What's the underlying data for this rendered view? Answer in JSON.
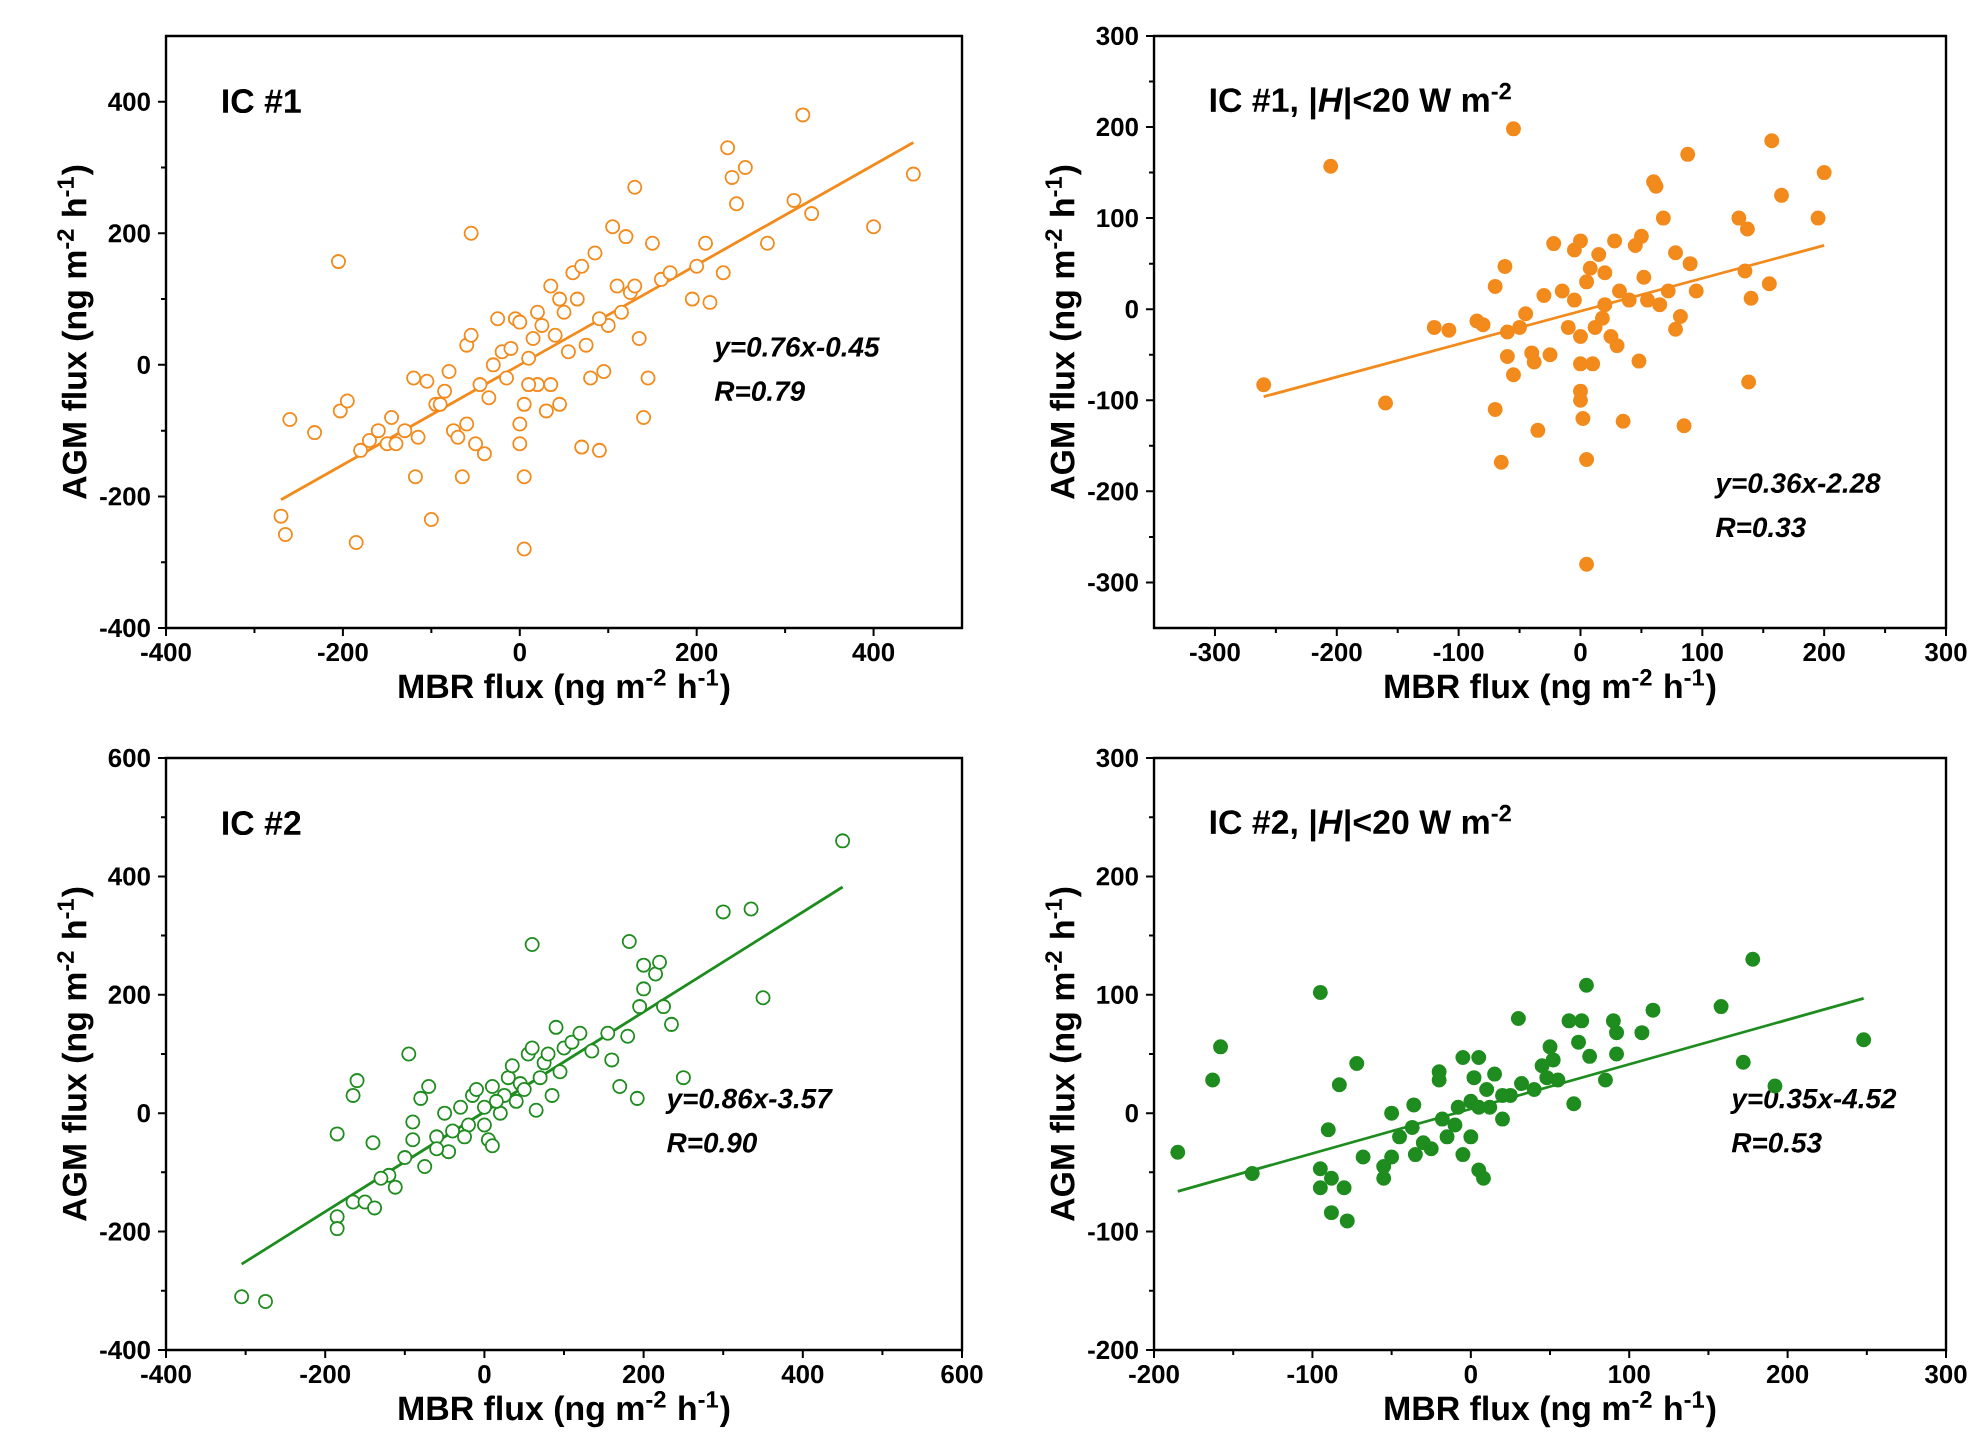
{
  "chart_data": [
    {
      "type": "scatter",
      "title": "IC #1",
      "xlabel": "MBR flux (ng m$^{-2}$ h$^{-1}$)",
      "ylabel": "AGM flux (ng m$^{-2}$ h$^{-1}$)",
      "xlim": [
        -400,
        500
      ],
      "ylim": [
        -400,
        500
      ],
      "xticks": [
        -400,
        -200,
        0,
        200,
        400
      ],
      "yticks": [
        -400,
        -200,
        0,
        200,
        400
      ],
      "grid": false,
      "annotations": [
        "y=0.76x-0.45",
        "R=0.79"
      ],
      "series": [
        {
          "marker": "circle",
          "color": "#f28a1c",
          "x": [
            -270,
            -265,
            -260,
            -232,
            -205,
            -203,
            -195,
            -185,
            -180,
            -170,
            -160,
            -150,
            -145,
            -140,
            -120,
            -118,
            -115,
            -105,
            -100,
            -95,
            -90,
            -80,
            -75,
            -70,
            -65,
            -60,
            -55,
            -55,
            -50,
            -45,
            -40,
            -35,
            -25,
            -20,
            -15,
            -10,
            -5,
            0,
            0,
            0,
            5,
            5,
            5,
            10,
            15,
            20,
            25,
            30,
            35,
            35,
            40,
            45,
            50,
            55,
            60,
            65,
            70,
            75,
            80,
            85,
            90,
            95,
            100,
            105,
            110,
            120,
            125,
            130,
            135,
            140,
            145,
            150,
            160,
            170,
            195,
            200,
            210,
            215,
            230,
            235,
            240,
            245,
            255,
            280,
            310,
            320,
            330,
            400,
            445,
            -130,
            -85,
            20,
            45,
            70,
            90,
            115,
            130,
            -30,
            10,
            -60
          ],
          "values": [
            -230,
            -258,
            -83,
            -103,
            157,
            -70,
            -55,
            -270,
            -130,
            -115,
            -100,
            -120,
            -80,
            -120,
            -20,
            -170,
            -110,
            -25,
            -235,
            -60,
            -60,
            -10,
            -100,
            -110,
            -170,
            30,
            45,
            200,
            -120,
            -30,
            -135,
            -50,
            70,
            20,
            -20,
            25,
            70,
            65,
            -90,
            -120,
            -280,
            -170,
            -60,
            10,
            40,
            -30,
            60,
            -70,
            120,
            -30,
            45,
            -60,
            80,
            20,
            140,
            100,
            -125,
            30,
            -20,
            170,
            -130,
            -10,
            60,
            210,
            120,
            195,
            110,
            270,
            40,
            -80,
            -20,
            185,
            130,
            140,
            100,
            150,
            185,
            95,
            140,
            330,
            285,
            245,
            300,
            185,
            250,
            380,
            230,
            210,
            290,
            -100,
            -40,
            80,
            100,
            150,
            70,
            80,
            120,
            0,
            -30,
            -90
          ]
        },
        {
          "type": "line",
          "marker": "none",
          "color": "#f28a1c",
          "x": [
            -270,
            445
          ],
          "values": [
            -205,
            338
          ]
        }
      ]
    },
    {
      "type": "scatter",
      "title": "IC #1, |*H*|<20 W m$^{-2}$",
      "xlabel": "MBR flux (ng m$^{-2}$ h$^{-1}$)",
      "ylabel": "AGM flux (ng m$^{-2}$ h$^{-1}$)",
      "xlim": [
        -350,
        300
      ],
      "ylim": [
        -350,
        300
      ],
      "xticks": [
        -300,
        -200,
        -100,
        0,
        100,
        200,
        300
      ],
      "yticks": [
        -300,
        -200,
        -100,
        0,
        100,
        200,
        300
      ],
      "grid": false,
      "annotations": [
        "y=0.36x-2.28",
        "R=0.33"
      ],
      "series": [
        {
          "marker": "circle",
          "color": "#f28a1c",
          "x": [
            -260,
            -205,
            -160,
            -120,
            -108,
            -85,
            -80,
            -70,
            -70,
            -65,
            -62,
            -60,
            -60,
            -55,
            -55,
            -45,
            -40,
            -38,
            -35,
            -30,
            -25,
            -22,
            -15,
            -10,
            -5,
            -5,
            0,
            0,
            0,
            0,
            0,
            2,
            5,
            5,
            5,
            8,
            10,
            12,
            15,
            18,
            20,
            25,
            28,
            30,
            32,
            35,
            40,
            45,
            48,
            50,
            52,
            55,
            60,
            62,
            65,
            68,
            72,
            78,
            78,
            82,
            85,
            88,
            90,
            95,
            130,
            135,
            137,
            138,
            140,
            155,
            157,
            165,
            195,
            200,
            -50,
            20
          ],
          "values": [
            -83,
            157,
            -103,
            -20,
            -23,
            -13,
            -17,
            -110,
            25,
            -168,
            47,
            -25,
            -52,
            -72,
            198,
            -5,
            -48,
            -58,
            -133,
            15,
            -50,
            72,
            20,
            -20,
            65,
            10,
            75,
            -30,
            -60,
            -90,
            -100,
            -120,
            -280,
            -165,
            30,
            45,
            -60,
            -20,
            60,
            -10,
            40,
            -30,
            75,
            -40,
            20,
            -123,
            10,
            70,
            -57,
            80,
            35,
            10,
            140,
            135,
            5,
            100,
            20,
            62,
            -22,
            -8,
            -128,
            170,
            50,
            20,
            100,
            42,
            88,
            -80,
            12,
            28,
            185,
            125,
            100,
            150,
            -20,
            5
          ]
        },
        {
          "type": "line",
          "marker": "none",
          "color": "#f28a1c",
          "x": [
            -260,
            200
          ],
          "values": [
            -96,
            70
          ]
        }
      ]
    },
    {
      "type": "scatter",
      "title": "IC #2",
      "xlabel": "MBR flux (ng m$^{-2}$ h$^{-1}$)",
      "ylabel": "AGM flux (ng m$^{-2}$ h$^{-1}$)",
      "xlim": [
        -400,
        600
      ],
      "ylim": [
        -400,
        600
      ],
      "xticks": [
        -400,
        -200,
        0,
        200,
        400,
        600
      ],
      "yticks": [
        -400,
        -200,
        0,
        200,
        400,
        600
      ],
      "grid": false,
      "annotations": [
        "y=0.86x-3.57",
        "R=0.90"
      ],
      "series": [
        {
          "marker": "circle",
          "color": "#1e8c1e",
          "x": [
            -305,
            -275,
            -185,
            -185,
            -185,
            -165,
            -160,
            -165,
            -150,
            -140,
            -138,
            -120,
            -112,
            -100,
            -95,
            -90,
            -90,
            -80,
            -75,
            -70,
            -60,
            -50,
            -45,
            -40,
            -30,
            -20,
            -15,
            -10,
            0,
            0,
            5,
            10,
            10,
            20,
            25,
            30,
            35,
            40,
            45,
            50,
            55,
            60,
            60,
            65,
            70,
            75,
            80,
            85,
            90,
            95,
            100,
            110,
            120,
            135,
            155,
            160,
            170,
            180,
            182,
            192,
            195,
            200,
            200,
            215,
            220,
            225,
            235,
            250,
            300,
            335,
            350,
            450,
            -130,
            -60,
            15,
            -25
          ],
          "values": [
            -310,
            -318,
            -35,
            -175,
            -195,
            30,
            55,
            -150,
            -150,
            -50,
            -160,
            -105,
            -125,
            -75,
            100,
            -45,
            -15,
            25,
            -90,
            45,
            -40,
            0,
            -65,
            -30,
            10,
            -20,
            30,
            40,
            10,
            -20,
            -45,
            -55,
            45,
            0,
            30,
            60,
            80,
            20,
            50,
            40,
            100,
            285,
            110,
            5,
            60,
            85,
            100,
            30,
            145,
            70,
            110,
            120,
            135,
            105,
            135,
            90,
            45,
            130,
            290,
            25,
            180,
            210,
            250,
            235,
            255,
            180,
            150,
            60,
            340,
            345,
            195,
            460,
            -110,
            -60,
            20,
            -40
          ]
        },
        {
          "type": "line",
          "marker": "none",
          "color": "#1e8c1e",
          "x": [
            -305,
            450
          ],
          "values": [
            -255,
            382
          ]
        }
      ]
    },
    {
      "type": "scatter",
      "title": "IC #2, |*H*|<20 W m$^{-2}$",
      "xlabel": "MBR flux (ng m$^{-2}$ h$^{-1}$)",
      "ylabel": "AGM flux (ng m$^{-2}$ h$^{-1}$)",
      "xlim": [
        -200,
        300
      ],
      "ylim": [
        -200,
        300
      ],
      "xticks": [
        -200,
        -100,
        0,
        100,
        200,
        300
      ],
      "yticks": [
        -200,
        -100,
        0,
        100,
        200,
        300
      ],
      "grid": false,
      "annotations": [
        "y=0.35x-4.52",
        "R=0.53"
      ],
      "series": [
        {
          "marker": "circle",
          "color": "#1e8c1e",
          "x": [
            -185,
            -163,
            -158,
            -138,
            -95,
            -95,
            -95,
            -90,
            -88,
            -88,
            -83,
            -80,
            -78,
            -72,
            -68,
            -55,
            -55,
            -50,
            -50,
            -45,
            -37,
            -36,
            -35,
            -25,
            -20,
            -20,
            -18,
            -15,
            -10,
            -8,
            -5,
            -5,
            0,
            0,
            2,
            5,
            5,
            8,
            10,
            12,
            15,
            20,
            25,
            30,
            32,
            40,
            45,
            48,
            50,
            52,
            55,
            62,
            65,
            68,
            70,
            73,
            75,
            85,
            90,
            92,
            92,
            108,
            115,
            158,
            172,
            178,
            192,
            248,
            -30,
            20,
            5
          ],
          "values": [
            -33,
            28,
            56,
            -51,
            102,
            -47,
            -63,
            -14,
            -55,
            -84,
            24,
            -63,
            -91,
            42,
            -37,
            -55,
            -45,
            0,
            -37,
            -20,
            -12,
            7,
            -35,
            -30,
            35,
            28,
            -5,
            -20,
            -10,
            5,
            -35,
            47,
            10,
            -20,
            30,
            -48,
            47,
            -55,
            20,
            5,
            33,
            -5,
            15,
            80,
            25,
            20,
            40,
            30,
            56,
            45,
            28,
            78,
            8,
            60,
            78,
            108,
            48,
            28,
            78,
            50,
            68,
            68,
            87,
            90,
            43,
            130,
            23,
            62,
            -25,
            15,
            5
          ]
        },
        {
          "type": "line",
          "marker": "none",
          "color": "#1e8c1e",
          "x": [
            -185,
            248
          ],
          "values": [
            -66,
            97
          ]
        }
      ]
    }
  ]
}
